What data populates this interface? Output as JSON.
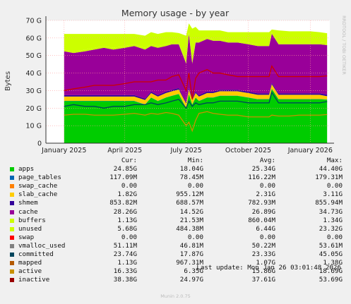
{
  "chart_data": {
    "type": "area",
    "title": "Memory usage - by year",
    "ylabel": "Bytes",
    "watermark": "RRDTOOL / TOBI OETIKER",
    "ylim": [
      0,
      70
    ],
    "y_unit": "G",
    "y_ticks": [
      0,
      10,
      20,
      30,
      40,
      50,
      60,
      70
    ],
    "y_tick_labels": [
      "0",
      "10 G",
      "20 G",
      "30 G",
      "40 G",
      "50 G",
      "60 G",
      "70 G"
    ],
    "x_tick_labels": [
      "January 2025",
      "April 2025",
      "July 2025",
      "October 2025",
      "January 2026"
    ],
    "x": [
      "2025-01-01",
      "2025-01-15",
      "2025-02-01",
      "2025-02-15",
      "2025-03-01",
      "2025-03-15",
      "2025-04-01",
      "2025-04-15",
      "2025-05-01",
      "2025-05-10",
      "2025-05-20",
      "2025-06-01",
      "2025-06-10",
      "2025-06-20",
      "2025-07-01",
      "2025-07-05",
      "2025-07-10",
      "2025-07-15",
      "2025-07-20",
      "2025-08-01",
      "2025-08-10",
      "2025-08-20",
      "2025-09-01",
      "2025-09-15",
      "2025-10-01",
      "2025-10-15",
      "2025-11-01",
      "2025-11-05",
      "2025-11-15",
      "2025-12-01",
      "2025-12-15",
      "2026-01-01",
      "2026-01-15",
      "2026-01-26"
    ],
    "series": [
      {
        "name": "apps",
        "color": "#00cc00",
        "values": [
          24,
          24,
          24,
          24,
          24,
          24,
          24,
          24,
          22,
          26,
          24,
          26,
          27,
          28,
          20,
          28,
          22,
          26,
          24,
          26,
          26,
          27,
          27,
          27,
          26,
          25,
          25,
          31,
          25,
          25,
          25,
          25,
          25,
          24.85
        ]
      },
      {
        "name": "page_tables",
        "color": "#0066b3",
        "values": [
          0.12,
          0.12,
          0.12,
          0.12,
          0.12,
          0.12,
          0.12,
          0.12,
          0.12,
          0.12,
          0.12,
          0.12,
          0.12,
          0.12,
          0.12,
          0.12,
          0.12,
          0.12,
          0.12,
          0.12,
          0.12,
          0.12,
          0.12,
          0.12,
          0.12,
          0.12,
          0.12,
          0.12,
          0.12,
          0.12,
          0.12,
          0.12,
          0.12,
          0.12
        ]
      },
      {
        "name": "swap_cache",
        "color": "#ff8000",
        "values": [
          0,
          0,
          0,
          0,
          0,
          0,
          0,
          0,
          0,
          0,
          0,
          0,
          0,
          0,
          0,
          0,
          0,
          0,
          0,
          0,
          0,
          0,
          0,
          0,
          0,
          0,
          0,
          0,
          0,
          0,
          0,
          0,
          0,
          0
        ]
      },
      {
        "name": "slab_cache",
        "color": "#ffcc00",
        "values": [
          2.5,
          2.5,
          2.5,
          2.5,
          2.5,
          2.5,
          2.5,
          2.5,
          2.5,
          2.5,
          2.5,
          2.5,
          2.5,
          2.5,
          2.5,
          2.5,
          2.5,
          2.5,
          2.5,
          2.5,
          2.5,
          2.5,
          2.5,
          2.5,
          2.5,
          2.5,
          2.5,
          2.5,
          2.5,
          2.5,
          2.5,
          2.5,
          2.5,
          1.82
        ]
      },
      {
        "name": "shmem",
        "color": "#330099",
        "values": [
          0.8,
          0.8,
          0.8,
          0.8,
          0.8,
          0.8,
          0.8,
          0.8,
          0.8,
          0.8,
          0.8,
          0.8,
          0.8,
          0.8,
          0.8,
          0.8,
          0.8,
          0.8,
          0.8,
          0.8,
          0.8,
          0.8,
          0.8,
          0.8,
          0.8,
          0.8,
          0.8,
          0.8,
          0.8,
          0.8,
          0.8,
          0.8,
          0.8,
          0.85
        ]
      },
      {
        "name": "cache",
        "color": "#990099",
        "values": [
          25,
          24,
          25,
          26,
          27,
          26,
          27,
          28,
          28,
          26,
          27,
          26,
          26,
          25,
          22,
          31,
          20,
          28,
          30,
          30,
          29,
          28,
          27,
          27,
          27,
          27,
          27,
          28,
          28,
          28,
          28,
          28,
          28,
          28.26
        ]
      },
      {
        "name": "buffers",
        "color": "#ccff00",
        "values": [
          0.9,
          0.9,
          0.9,
          0.9,
          0.9,
          0.9,
          0.9,
          0.9,
          0.9,
          0.9,
          0.9,
          0.9,
          0.9,
          0.9,
          0.9,
          0.9,
          0.9,
          0.9,
          0.9,
          0.9,
          0.9,
          0.9,
          0.9,
          0.9,
          0.9,
          0.9,
          0.9,
          0.9,
          0.9,
          0.9,
          0.9,
          0.9,
          0.9,
          1.13
        ]
      },
      {
        "name": "unused",
        "color": "#ccff00",
        "values": [
          9,
          10,
          9,
          8,
          7,
          8,
          7,
          6,
          7,
          7,
          7,
          7,
          6,
          5.5,
          15,
          5,
          19,
          8,
          6,
          4,
          5,
          5,
          5,
          5,
          6,
          7,
          7,
          1.5,
          7,
          6.5,
          6.5,
          6.5,
          6,
          5.68
        ]
      }
    ],
    "lines": [
      {
        "name": "committed",
        "color": "#00455c",
        "values": [
          21,
          22,
          21,
          21,
          20,
          21,
          21,
          22,
          22,
          23,
          22,
          23,
          24,
          25,
          20,
          24,
          21,
          23,
          22,
          23,
          23,
          24,
          24,
          24,
          23,
          23,
          23,
          29,
          23,
          23,
          23,
          23,
          23,
          23.74
        ]
      },
      {
        "name": "active",
        "color": "#c89100",
        "values": [
          16,
          16.5,
          16.5,
          16,
          16,
          16,
          16.5,
          17,
          16,
          17,
          16.5,
          17.5,
          17,
          16,
          10,
          12,
          7,
          13,
          17,
          18,
          17,
          16.5,
          16,
          16,
          15,
          15,
          15,
          16,
          15.5,
          15.5,
          16,
          16,
          16,
          16.33
        ]
      },
      {
        "name": "inactive",
        "color": "#cc0000",
        "values": [
          30,
          31,
          32,
          33,
          33,
          33,
          34,
          35,
          35,
          35,
          36,
          36,
          38,
          39,
          30,
          40,
          25,
          37,
          40,
          42,
          40,
          40,
          39,
          38,
          38,
          38,
          38,
          44,
          38,
          38,
          38,
          38,
          38,
          38.38
        ]
      }
    ]
  },
  "legend": {
    "headers": {
      "cur": "Cur:",
      "min": "Min:",
      "avg": "Avg:",
      "max": "Max:"
    },
    "rows": [
      {
        "name": "apps",
        "color": "#00cc00",
        "cur": "24.85G",
        "min": "18.04G",
        "avg": "25.34G",
        "max": "44.40G"
      },
      {
        "name": "page_tables",
        "color": "#0066b3",
        "cur": "117.09M",
        "min": "78.45M",
        "avg": "116.22M",
        "max": "179.31M"
      },
      {
        "name": "swap_cache",
        "color": "#ff8000",
        "cur": "0.00",
        "min": "0.00",
        "avg": "0.00",
        "max": "0.00"
      },
      {
        "name": "slab_cache",
        "color": "#ffcc00",
        "cur": "1.82G",
        "min": "955.12M",
        "avg": "2.31G",
        "max": "3.11G"
      },
      {
        "name": "shmem",
        "color": "#330099",
        "cur": "853.82M",
        "min": "688.57M",
        "avg": "782.93M",
        "max": "855.94M"
      },
      {
        "name": "cache",
        "color": "#990099",
        "cur": "28.26G",
        "min": "14.52G",
        "avg": "26.89G",
        "max": "34.73G"
      },
      {
        "name": "buffers",
        "color": "#ccff00",
        "cur": "1.13G",
        "min": "21.53M",
        "avg": "860.04M",
        "max": "1.34G"
      },
      {
        "name": "unused",
        "color": "#ccff00",
        "cur": "5.68G",
        "min": "484.38M",
        "avg": "6.44G",
        "max": "23.32G"
      },
      {
        "name": "swap",
        "color": "#ff0000",
        "cur": "0.00",
        "min": "0.00",
        "avg": "0.00",
        "max": "0.00"
      },
      {
        "name": "vmalloc_used",
        "color": "#808080",
        "cur": "51.11M",
        "min": "46.81M",
        "avg": "50.22M",
        "max": "53.61M"
      },
      {
        "name": "committed",
        "color": "#00455c",
        "cur": "23.74G",
        "min": "17.87G",
        "avg": "23.33G",
        "max": "45.05G"
      },
      {
        "name": "mapped",
        "color": "#b35900",
        "cur": "1.13G",
        "min": "967.31M",
        "avg": "1.07G",
        "max": "1.38G"
      },
      {
        "name": "active",
        "color": "#c89100",
        "cur": "16.33G",
        "min": "6.35G",
        "avg": "15.86G",
        "max": "18.69G"
      },
      {
        "name": "inactive",
        "color": "#990000",
        "cur": "38.38G",
        "min": "24.97G",
        "avg": "37.61G",
        "max": "53.69G"
      }
    ]
  },
  "last_update": "Last update: Mon Jan 26 03:01:48 2026",
  "footer": "Munin 2.0.75"
}
